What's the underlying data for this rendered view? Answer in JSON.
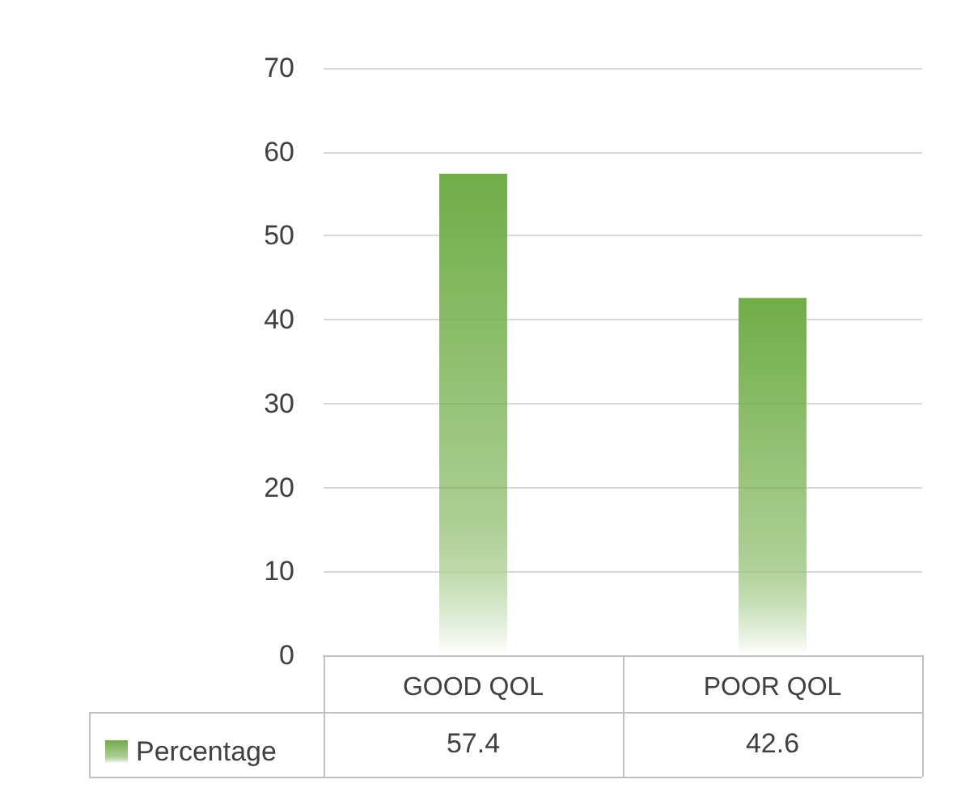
{
  "chart_data": {
    "type": "bar",
    "categories": [
      "GOOD QOL",
      "POOR QOL"
    ],
    "series": [
      {
        "name": "Percentage",
        "color": "#70ad47",
        "values": [
          57.4,
          42.6
        ]
      }
    ],
    "ylim": [
      0,
      70
    ],
    "yticks": [
      0,
      10,
      20,
      30,
      40,
      50,
      60,
      70
    ],
    "grid": "y",
    "legend": "bottom",
    "data_labels": true
  }
}
